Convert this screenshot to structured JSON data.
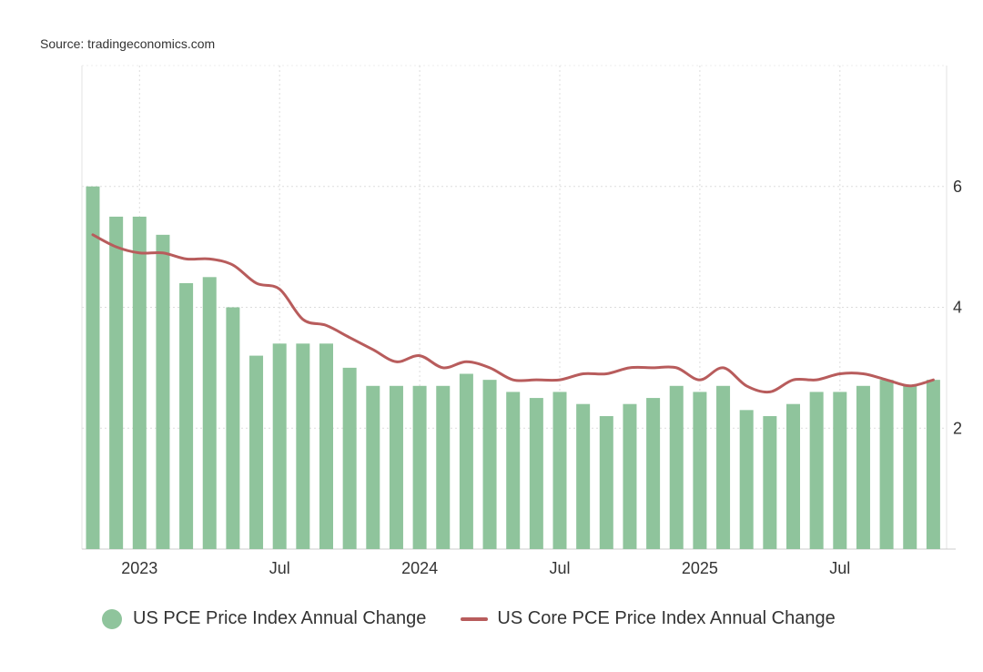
{
  "source": "Source: tradingeconomics.com",
  "chart_data": {
    "type": "bar+line",
    "title": "",
    "xlabel": "",
    "ylabel": "",
    "ylim": [
      0,
      8
    ],
    "yticks": [
      2,
      4,
      6
    ],
    "grid": true,
    "legend_position": "bottom",
    "x_tick_labels": [
      {
        "label": "2023",
        "month": "2023-01"
      },
      {
        "label": "Jul",
        "month": "2023-07"
      },
      {
        "label": "2024",
        "month": "2024-01"
      },
      {
        "label": "Jul",
        "month": "2024-07"
      },
      {
        "label": "2025",
        "month": "2025-01"
      },
      {
        "label": "Jul",
        "month": "2025-07"
      }
    ],
    "x": [
      "2022-11",
      "2022-12",
      "2023-01",
      "2023-02",
      "2023-03",
      "2023-04",
      "2023-05",
      "2023-06",
      "2023-07",
      "2023-08",
      "2023-09",
      "2023-10",
      "2023-11",
      "2023-12",
      "2024-01",
      "2024-02",
      "2024-03",
      "2024-04",
      "2024-05",
      "2024-06",
      "2024-07",
      "2024-08",
      "2024-09",
      "2024-10",
      "2024-11",
      "2024-12",
      "2025-01",
      "2025-02",
      "2025-03",
      "2025-04",
      "2025-05",
      "2025-06",
      "2025-07",
      "2025-08",
      "2025-09",
      "2025-10",
      "2025-11"
    ],
    "series": [
      {
        "name": "US PCE Price Index Annual Change",
        "type": "bar",
        "color": "#8fc49c",
        "values": [
          6.0,
          5.5,
          5.5,
          5.2,
          4.4,
          4.5,
          4.0,
          3.2,
          3.4,
          3.4,
          3.4,
          3.0,
          2.7,
          2.7,
          2.7,
          2.7,
          2.9,
          2.8,
          2.6,
          2.5,
          2.6,
          2.4,
          2.2,
          2.4,
          2.5,
          2.7,
          2.6,
          2.7,
          2.3,
          2.2,
          2.4,
          2.6,
          2.6,
          2.7,
          2.8,
          2.7,
          2.8
        ]
      },
      {
        "name": "US Core PCE Price Index Annual Change",
        "type": "line",
        "color": "#b85c5c",
        "values": [
          5.2,
          5.0,
          4.9,
          4.9,
          4.8,
          4.8,
          4.7,
          4.4,
          4.3,
          3.8,
          3.7,
          3.5,
          3.3,
          3.1,
          3.2,
          3.0,
          3.1,
          3.0,
          2.8,
          2.8,
          2.8,
          2.9,
          2.9,
          3.0,
          3.0,
          3.0,
          2.8,
          3.0,
          2.7,
          2.6,
          2.8,
          2.8,
          2.9,
          2.9,
          2.8,
          2.7,
          2.8
        ]
      }
    ]
  }
}
